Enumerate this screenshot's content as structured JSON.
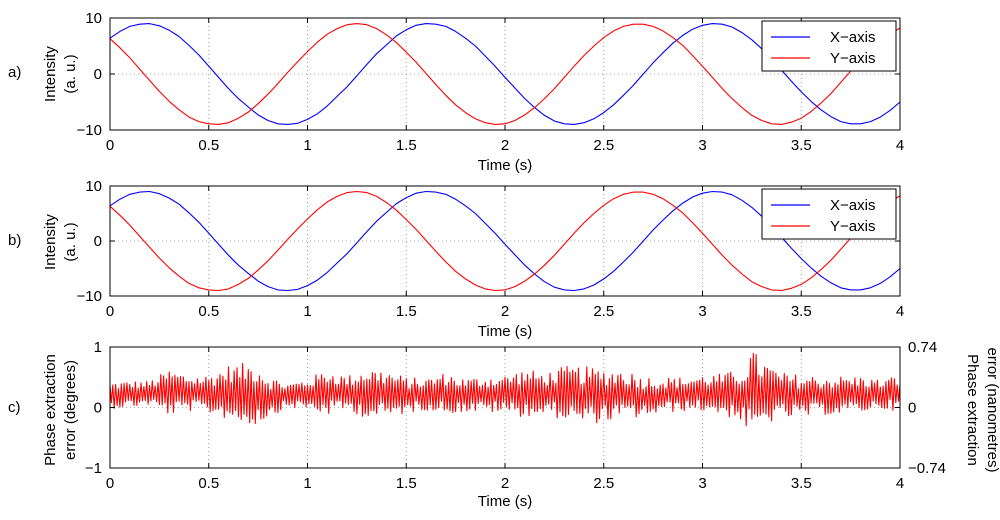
{
  "figure": {
    "background": "#ffffff",
    "colors": {
      "series_blue": "#0000ff",
      "series_red": "#ff0000",
      "axes": "#000000",
      "grid": "#8c8c8c"
    }
  },
  "chart_data": [
    {
      "panel_label": "a)",
      "type": "line",
      "xlabel": "Time (s)",
      "ylabel_line1": "Intensity",
      "ylabel_line2": "(a. u.)",
      "xlim": [
        0,
        4
      ],
      "ylim": [
        -10,
        10
      ],
      "xticks": [
        0,
        0.5,
        1,
        1.5,
        2,
        2.5,
        3,
        3.5,
        4
      ],
      "xtick_labels": [
        "0",
        "0.5",
        "1",
        "1.5",
        "2",
        "2.5",
        "3",
        "3.5",
        "4"
      ],
      "yticks": [
        -10,
        0,
        10
      ],
      "ytick_labels": [
        "−10",
        "0",
        "10"
      ],
      "grid": true,
      "legend_position": "top-right",
      "series": [
        {
          "name": "X−axis",
          "color": "#0000ff",
          "x": [
            0,
            0.05,
            0.1,
            0.15,
            0.2,
            0.25,
            0.3,
            0.35,
            0.4,
            0.45,
            0.5,
            0.55,
            0.6,
            0.65,
            0.7,
            0.75,
            0.8,
            0.85,
            0.9,
            0.95,
            1,
            1.05,
            1.1,
            1.15,
            1.2,
            1.25,
            1.3,
            1.35,
            1.4,
            1.45,
            1.5,
            1.55,
            1.6,
            1.65,
            1.7,
            1.75,
            1.8,
            1.85,
            1.9,
            1.95,
            2,
            2.05,
            2.1,
            2.15,
            2.2,
            2.25,
            2.3,
            2.35,
            2.4,
            2.45,
            2.5,
            2.55,
            2.6,
            2.65,
            2.7,
            2.75,
            2.8,
            2.85,
            2.9,
            2.95,
            3,
            3.05,
            3.1,
            3.15,
            3.2,
            3.25,
            3.3,
            3.35,
            3.4,
            3.45,
            3.5,
            3.55,
            3.6,
            3.65,
            3.7,
            3.75,
            3.8,
            3.85,
            3.9,
            3.95,
            4
          ],
          "y": [
            6.4,
            7.6,
            8.5,
            8.9,
            9,
            8.6,
            7.8,
            6.7,
            5.1,
            3.4,
            1.4,
            -0.6,
            -2.6,
            -4.4,
            -5.9,
            -7.3,
            -8.3,
            -8.9,
            -9,
            -8.8,
            -8.1,
            -7.1,
            -5.7,
            -4,
            -2.3,
            -0.3,
            1.7,
            3.6,
            5.2,
            6.8,
            7.9,
            8.7,
            9,
            8.9,
            8.5,
            7.6,
            6.4,
            5,
            3.2,
            1.4,
            -0.6,
            -2.5,
            -4.4,
            -6,
            -7.4,
            -8.4,
            -8.9,
            -9,
            -8.7,
            -8,
            -6.9,
            -5.5,
            -3.8,
            -2,
            0,
            2,
            3.8,
            5.5,
            6.9,
            8,
            8.7,
            9,
            8.9,
            8.4,
            7.4,
            6.1,
            4.5,
            2.6,
            0.7,
            -1.3,
            -3.2,
            -4.9,
            -6.4,
            -7.6,
            -8.5,
            -8.9,
            -8.9,
            -8.5,
            -7.7,
            -6.5,
            -5
          ]
        },
        {
          "name": "Y−axis",
          "color": "#ff0000",
          "x": [
            0,
            0.05,
            0.1,
            0.15,
            0.2,
            0.25,
            0.3,
            0.35,
            0.4,
            0.45,
            0.5,
            0.55,
            0.6,
            0.65,
            0.7,
            0.75,
            0.8,
            0.85,
            0.9,
            0.95,
            1,
            1.05,
            1.1,
            1.15,
            1.2,
            1.25,
            1.3,
            1.35,
            1.4,
            1.45,
            1.5,
            1.55,
            1.6,
            1.65,
            1.7,
            1.75,
            1.8,
            1.85,
            1.9,
            1.95,
            2,
            2.05,
            2.1,
            2.15,
            2.2,
            2.25,
            2.3,
            2.35,
            2.4,
            2.45,
            2.5,
            2.55,
            2.6,
            2.65,
            2.7,
            2.75,
            2.8,
            2.85,
            2.9,
            2.95,
            3,
            3.05,
            3.1,
            3.15,
            3.2,
            3.25,
            3.3,
            3.35,
            3.4,
            3.45,
            3.5,
            3.55,
            3.6,
            3.65,
            3.7,
            3.75,
            3.8,
            3.85,
            3.9,
            3.95,
            4
          ],
          "y": [
            6.3,
            4.7,
            2.9,
            0.9,
            -1.1,
            -3.1,
            -4.9,
            -6.4,
            -7.7,
            -8.5,
            -8.9,
            -9,
            -8.7,
            -7.9,
            -6.8,
            -5.3,
            -3.6,
            -1.7,
            0.3,
            2.2,
            4,
            5.7,
            7.1,
            8.1,
            8.8,
            9,
            8.8,
            8.1,
            7,
            5.6,
            3.9,
            2.1,
            0.1,
            -1.9,
            -3.8,
            -5.5,
            -6.9,
            -8,
            -8.7,
            -9,
            -8.9,
            -8.3,
            -7.3,
            -6,
            -4.4,
            -2.6,
            -0.6,
            1.4,
            3.3,
            5,
            6.5,
            7.7,
            8.5,
            8.9,
            8.9,
            8.5,
            7.7,
            6.5,
            5.1,
            3.3,
            1.4,
            -0.6,
            -2.6,
            -4.4,
            -6,
            -7.4,
            -8.3,
            -8.9,
            -9,
            -8.6,
            -7.9,
            -6.7,
            -5.2,
            -3.5,
            -1.5,
            0.5,
            2.4,
            4.2,
            5.8,
            7.2,
            8.2
          ]
        }
      ]
    },
    {
      "panel_label": "b)",
      "type": "line",
      "xlabel": "Time (s)",
      "ylabel_line1": "Intensity",
      "ylabel_line2": "(a. u.)",
      "xlim": [
        0,
        4
      ],
      "ylim": [
        -10,
        10
      ],
      "xticks": [
        0,
        0.5,
        1,
        1.5,
        2,
        2.5,
        3,
        3.5,
        4
      ],
      "xtick_labels": [
        "0",
        "0.5",
        "1",
        "1.5",
        "2",
        "2.5",
        "3",
        "3.5",
        "4"
      ],
      "yticks": [
        -10,
        0,
        10
      ],
      "ytick_labels": [
        "−10",
        "0",
        "10"
      ],
      "grid": true,
      "legend_position": "top-right",
      "series": [
        {
          "name": "X−axis",
          "color": "#0000ff",
          "x": [
            0,
            0.05,
            0.1,
            0.15,
            0.2,
            0.25,
            0.3,
            0.35,
            0.4,
            0.45,
            0.5,
            0.55,
            0.6,
            0.65,
            0.7,
            0.75,
            0.8,
            0.85,
            0.9,
            0.95,
            1,
            1.05,
            1.1,
            1.15,
            1.2,
            1.25,
            1.3,
            1.35,
            1.4,
            1.45,
            1.5,
            1.55,
            1.6,
            1.65,
            1.7,
            1.75,
            1.8,
            1.85,
            1.9,
            1.95,
            2,
            2.05,
            2.1,
            2.15,
            2.2,
            2.25,
            2.3,
            2.35,
            2.4,
            2.45,
            2.5,
            2.55,
            2.6,
            2.65,
            2.7,
            2.75,
            2.8,
            2.85,
            2.9,
            2.95,
            3,
            3.05,
            3.1,
            3.15,
            3.2,
            3.25,
            3.3,
            3.35,
            3.4,
            3.45,
            3.5,
            3.55,
            3.6,
            3.65,
            3.7,
            3.75,
            3.8,
            3.85,
            3.9,
            3.95,
            4
          ],
          "y": [
            6.4,
            7.6,
            8.5,
            8.9,
            9,
            8.6,
            7.8,
            6.7,
            5.1,
            3.4,
            1.4,
            -0.6,
            -2.6,
            -4.4,
            -5.9,
            -7.3,
            -8.3,
            -8.9,
            -9,
            -8.8,
            -8.1,
            -7.1,
            -5.7,
            -4,
            -2.3,
            -0.3,
            1.7,
            3.6,
            5.2,
            6.8,
            7.9,
            8.7,
            9,
            8.9,
            8.5,
            7.6,
            6.4,
            5,
            3.2,
            1.4,
            -0.6,
            -2.5,
            -4.4,
            -6,
            -7.4,
            -8.4,
            -8.9,
            -9,
            -8.7,
            -8,
            -6.9,
            -5.5,
            -3.8,
            -2,
            0,
            2,
            3.8,
            5.5,
            6.9,
            8,
            8.7,
            9,
            8.9,
            8.4,
            7.4,
            6.1,
            4.5,
            2.6,
            0.7,
            -1.3,
            -3.2,
            -4.9,
            -6.4,
            -7.6,
            -8.5,
            -8.9,
            -8.9,
            -8.5,
            -7.7,
            -6.5,
            -5
          ]
        },
        {
          "name": "Y−axis",
          "color": "#ff0000",
          "x": [
            0,
            0.05,
            0.1,
            0.15,
            0.2,
            0.25,
            0.3,
            0.35,
            0.4,
            0.45,
            0.5,
            0.55,
            0.6,
            0.65,
            0.7,
            0.75,
            0.8,
            0.85,
            0.9,
            0.95,
            1,
            1.05,
            1.1,
            1.15,
            1.2,
            1.25,
            1.3,
            1.35,
            1.4,
            1.45,
            1.5,
            1.55,
            1.6,
            1.65,
            1.7,
            1.75,
            1.8,
            1.85,
            1.9,
            1.95,
            2,
            2.05,
            2.1,
            2.15,
            2.2,
            2.25,
            2.3,
            2.35,
            2.4,
            2.45,
            2.5,
            2.55,
            2.6,
            2.65,
            2.7,
            2.75,
            2.8,
            2.85,
            2.9,
            2.95,
            3,
            3.05,
            3.1,
            3.15,
            3.2,
            3.25,
            3.3,
            3.35,
            3.4,
            3.45,
            3.5,
            3.55,
            3.6,
            3.65,
            3.7,
            3.75,
            3.8,
            3.85,
            3.9,
            3.95,
            4
          ],
          "y": [
            6.3,
            4.7,
            2.9,
            0.9,
            -1.1,
            -3.1,
            -4.9,
            -6.4,
            -7.7,
            -8.5,
            -8.9,
            -9,
            -8.7,
            -7.9,
            -6.8,
            -5.3,
            -3.6,
            -1.7,
            0.3,
            2.2,
            4,
            5.7,
            7.1,
            8.1,
            8.8,
            9,
            8.8,
            8.1,
            7,
            5.6,
            3.9,
            2.1,
            0.1,
            -1.9,
            -3.8,
            -5.5,
            -6.9,
            -8,
            -8.7,
            -9,
            -8.9,
            -8.3,
            -7.3,
            -6,
            -4.4,
            -2.6,
            -0.6,
            1.4,
            3.3,
            5,
            6.5,
            7.7,
            8.5,
            8.9,
            8.9,
            8.5,
            7.7,
            6.5,
            5.1,
            3.3,
            1.4,
            -0.6,
            -2.6,
            -4.4,
            -6,
            -7.4,
            -8.3,
            -8.9,
            -9,
            -8.6,
            -7.9,
            -6.7,
            -5.2,
            -3.5,
            -1.5,
            0.5,
            2.4,
            4.2,
            5.8,
            7.2,
            8.2
          ]
        }
      ]
    },
    {
      "panel_label": "c)",
      "type": "line",
      "xlabel": "Time (s)",
      "ylabel_line1": "Phase extraction",
      "ylabel_line2": "error (degrees)",
      "ylabel_right_line1": "Phase extraction",
      "ylabel_right_line2": "error (nanometres)",
      "xlim": [
        0,
        4
      ],
      "ylim": [
        -1,
        1
      ],
      "ylim_right": [
        -0.74,
        0.74
      ],
      "xticks": [
        0,
        0.5,
        1,
        1.5,
        2,
        2.5,
        3,
        3.5,
        4
      ],
      "xtick_labels": [
        "0",
        "0.5",
        "1",
        "1.5",
        "2",
        "2.5",
        "3",
        "3.5",
        "4"
      ],
      "yticks": [
        -1,
        0,
        1
      ],
      "ytick_labels": [
        "−1",
        "0",
        "1"
      ],
      "yticks_right": [
        -0.74,
        0,
        0.74
      ],
      "ytick_labels_right": [
        "−0.74",
        "0",
        "0.74"
      ],
      "grid": true,
      "series": [
        {
          "color": "#ff0000",
          "x": [
            0,
            0.1,
            0.2,
            0.3,
            0.4,
            0.5,
            0.6,
            0.7,
            0.75,
            0.8,
            0.9,
            1,
            1.1,
            1.2,
            1.3,
            1.4,
            1.5,
            1.6,
            1.7,
            1.8,
            1.9,
            2,
            2.1,
            2.2,
            2.3,
            2.4,
            2.5,
            2.6,
            2.7,
            2.8,
            2.9,
            3,
            3.1,
            3.2,
            3.25,
            3.3,
            3.4,
            3.5,
            3.6,
            3.7,
            3.8,
            3.9,
            4
          ],
          "y_center": [
            0.2,
            0.22,
            0.24,
            0.25,
            0.24,
            0.22,
            0.25,
            0.22,
            0.22,
            0.18,
            0.2,
            0.22,
            0.25,
            0.24,
            0.24,
            0.22,
            0.2,
            0.22,
            0.24,
            0.2,
            0.22,
            0.22,
            0.24,
            0.22,
            0.24,
            0.2,
            0.2,
            0.22,
            0.18,
            0.2,
            0.22,
            0.24,
            0.22,
            0.2,
            0.22,
            0.24,
            0.2,
            0.18,
            0.2,
            0.2,
            0.22,
            0.22,
            0.24
          ],
          "amplitude": [
            0.22,
            0.22,
            0.2,
            0.38,
            0.3,
            0.32,
            0.45,
            0.52,
            0.5,
            0.35,
            0.2,
            0.26,
            0.38,
            0.28,
            0.42,
            0.4,
            0.3,
            0.26,
            0.34,
            0.28,
            0.3,
            0.32,
            0.4,
            0.35,
            0.44,
            0.48,
            0.44,
            0.42,
            0.34,
            0.3,
            0.28,
            0.3,
            0.34,
            0.44,
            0.75,
            0.55,
            0.38,
            0.36,
            0.32,
            0.32,
            0.3,
            0.24,
            0.3
          ]
        }
      ]
    }
  ]
}
